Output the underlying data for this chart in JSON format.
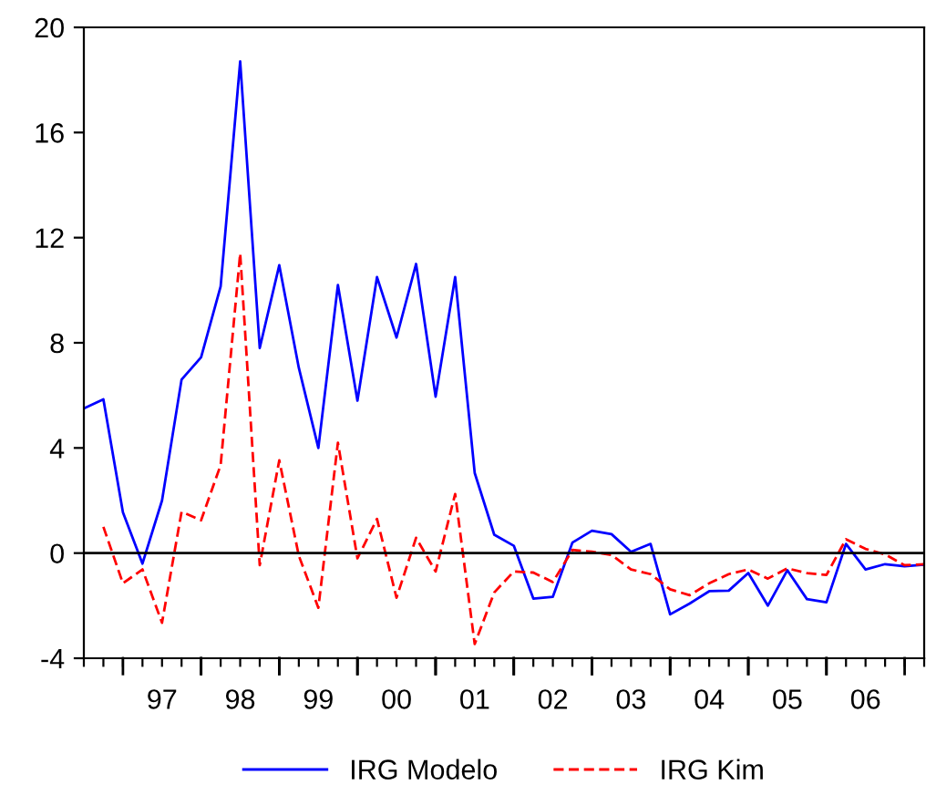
{
  "chart_data": {
    "type": "line",
    "categories": [
      null,
      null,
      null,
      null,
      "97",
      null,
      null,
      null,
      "98",
      null,
      null,
      null,
      "99",
      null,
      null,
      null,
      "00",
      null,
      null,
      null,
      "01",
      null,
      null,
      null,
      "02",
      null,
      null,
      null,
      "03",
      null,
      null,
      null,
      "04",
      null,
      null,
      null,
      "05",
      null,
      null,
      null,
      "06",
      null,
      null,
      null
    ],
    "series": [
      {
        "name": "IRG Modelo",
        "color": "#0000ff",
        "line_style": "solid",
        "values": [
          5.5,
          5.85,
          1.55,
          -0.4,
          2.0,
          6.6,
          7.45,
          10.15,
          18.7,
          7.8,
          10.95,
          7.05,
          4.0,
          10.2,
          5.8,
          10.5,
          8.2,
          11.0,
          5.95,
          10.5,
          3.05,
          0.7,
          0.28,
          -1.73,
          -1.66,
          0.4,
          0.85,
          0.72,
          0.05,
          0.35,
          -2.33,
          -1.92,
          -1.45,
          -1.43,
          -0.76,
          -2.0,
          -0.65,
          -1.75,
          -1.87,
          0.35,
          -0.62,
          -0.42,
          -0.5,
          -0.44
        ]
      },
      {
        "name": "IRG Kim",
        "color": "#ff0000",
        "line_style": "dashed",
        "values": [
          null,
          1.0,
          -1.15,
          -0.62,
          -2.65,
          1.57,
          1.25,
          3.35,
          11.4,
          -0.46,
          3.53,
          -0.1,
          -2.08,
          4.2,
          -0.2,
          1.3,
          -1.7,
          0.58,
          -0.7,
          2.25,
          -3.46,
          -1.5,
          -0.7,
          -0.74,
          -1.1,
          0.12,
          0.05,
          -0.07,
          -0.62,
          -0.8,
          -1.38,
          -1.6,
          -1.15,
          -0.8,
          -0.62,
          -0.97,
          -0.58,
          -0.76,
          -0.83,
          0.53,
          0.16,
          -0.05,
          -0.46,
          -0.42
        ]
      }
    ],
    "ylim": [
      -4,
      20
    ],
    "yticks": [
      -4,
      0,
      4,
      8,
      12,
      16,
      20
    ],
    "ref_lines": [
      {
        "axis": "y",
        "value": 0,
        "color": "#000000"
      }
    ],
    "grid": false,
    "legend": "bottom"
  }
}
